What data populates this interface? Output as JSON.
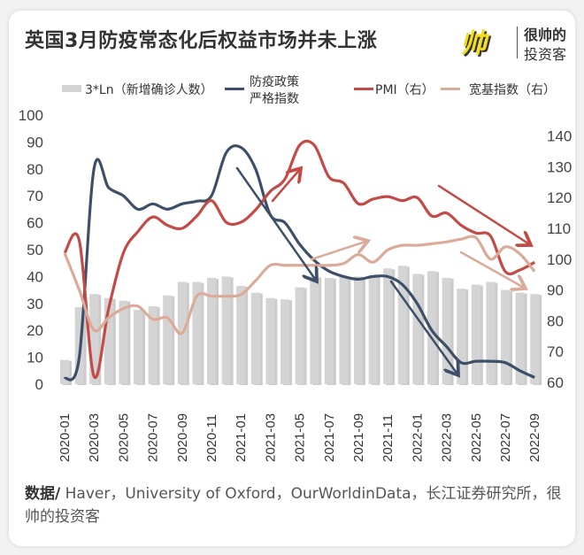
{
  "title": "英国3月防疫常态化后权益市场并未上涨",
  "logo": {
    "mark": "帅",
    "line1": "很帅的",
    "line2": "投资客"
  },
  "footer": {
    "label": "数据/",
    "text": " Haver，University of Oxford，OurWorldinData，长江证券研究所，很帅的投资客"
  },
  "chart_data": {
    "type": "bar+line",
    "title": "英国3月防疫常态化后权益市场并未上涨",
    "categories": [
      "2020-01",
      "2020-02",
      "2020-03",
      "2020-04",
      "2020-05",
      "2020-06",
      "2020-07",
      "2020-08",
      "2020-09",
      "2020-10",
      "2020-11",
      "2020-12",
      "2021-01",
      "2021-02",
      "2021-03",
      "2021-04",
      "2021-05",
      "2021-06",
      "2021-07",
      "2021-08",
      "2021-09",
      "2021-10",
      "2021-11",
      "2021-12",
      "2022-01",
      "2022-02",
      "2022-03",
      "2022-04",
      "2022-05",
      "2022-06",
      "2022-07",
      "2022-08",
      "2022-09"
    ],
    "xtick_labels": [
      "2020-01",
      "2020-03",
      "2020-05",
      "2020-07",
      "2020-09",
      "2020-11",
      "2021-01",
      "2021-03",
      "2021-05",
      "2021-07",
      "2021-09",
      "2021-11",
      "2022-01",
      "2022-03",
      "2022-05",
      "2022-07",
      "2022-09"
    ],
    "left_axis": {
      "ylim": [
        0,
        100
      ],
      "ticks": [
        "0",
        "10",
        "20",
        "30",
        "40",
        "50",
        "60",
        "70",
        "80",
        "90",
        "100"
      ]
    },
    "right_axis": {
      "ylim": [
        60,
        140
      ],
      "ticks": [
        "60",
        "70",
        "80",
        "90",
        "100",
        "110",
        "120",
        "130",
        "140"
      ]
    },
    "series": [
      {
        "name": "3*Ln（新增确诊人数）",
        "type": "bar",
        "axis": "left",
        "color": "#d4d4d4",
        "values": [
          9,
          28.6,
          33.5,
          32,
          31,
          27.6,
          29,
          33,
          38,
          38,
          39.5,
          40,
          36.5,
          34,
          32,
          31.5,
          36,
          40,
          39.5,
          40,
          40,
          40.5,
          43,
          44,
          41,
          42,
          39.5,
          35.5,
          37,
          38,
          35,
          34,
          33.5
        ]
      },
      {
        "name": "防疫政策严格指数",
        "type": "line",
        "axis": "left",
        "color": "#3d5068",
        "values": [
          2,
          10,
          80,
          73,
          70,
          65,
          67,
          65,
          67,
          68,
          70,
          86,
          88,
          80,
          63,
          60,
          52,
          46,
          42,
          40,
          39,
          40,
          40,
          37,
          30,
          20,
          14,
          8,
          8.5,
          8.5,
          8,
          5,
          2.5
        ]
      },
      {
        "name": "PMI（右）",
        "type": "line",
        "axis": "right",
        "color": "#c44a46",
        "values": [
          102,
          106,
          62,
          84,
          102,
          109,
          113.7,
          111,
          110,
          114,
          119,
          112,
          112,
          116,
          122,
          126,
          137,
          137,
          126.7,
          124.7,
          118,
          119.5,
          120.3,
          119,
          120,
          114,
          115,
          111,
          108.5,
          107.5,
          96,
          96.5,
          99
        ]
      },
      {
        "name": "宽基指数（右）",
        "type": "line",
        "axis": "right",
        "color": "#dcaa98",
        "values": [
          102,
          90,
          77,
          81,
          84,
          84.7,
          80.5,
          81,
          76,
          88,
          88,
          88,
          88.5,
          93,
          98,
          98,
          98,
          98,
          98,
          98.6,
          101.5,
          99,
          103,
          104.5,
          104.5,
          105,
          105.6,
          106.5,
          107,
          100,
          104,
          101.7,
          96
        ]
      }
    ],
    "legend": {
      "placement": "top",
      "items": [
        {
          "label": "3*Ln（新增确诊人数）",
          "color": "#d4d4d4"
        },
        {
          "label": "防疫政策",
          "label2": "严格指数",
          "color": "#3d5068"
        },
        {
          "label": "PMI（右）",
          "color": "#c44a46"
        },
        {
          "label": "宽基指数（右）",
          "color": "#dcaa98"
        }
      ]
    },
    "annotations": "trend arrows: policy down, PMI up then down, broad index up then down"
  }
}
